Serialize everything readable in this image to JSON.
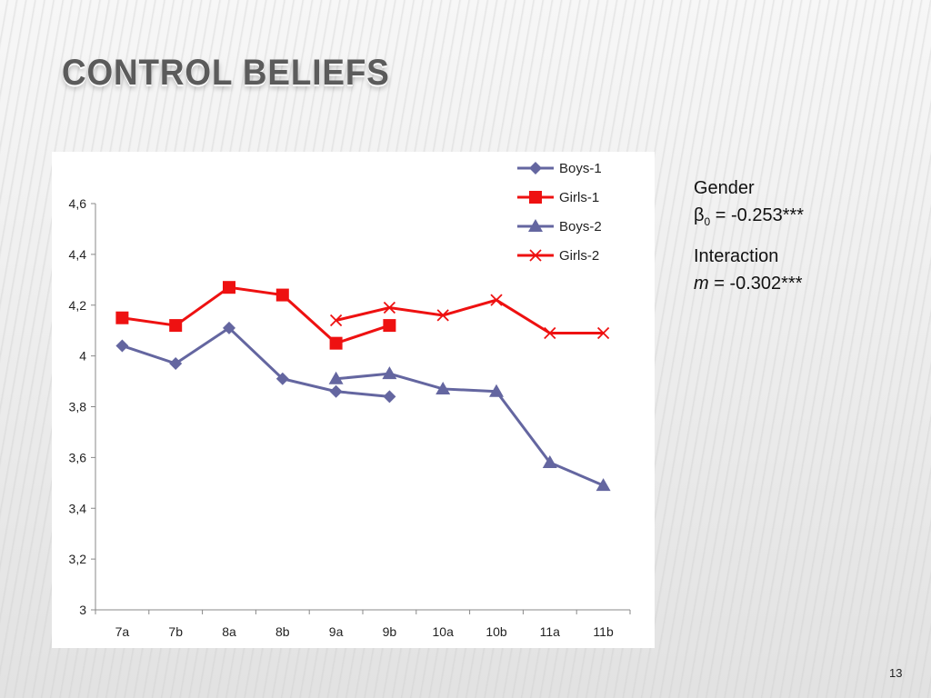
{
  "slide": {
    "title": "CONTROL BELIEFS",
    "page_number": "13"
  },
  "annotation": {
    "gender_label": "Gender",
    "beta_symbol": "β",
    "beta_subscript": "0",
    "beta_value": " = -0.253***",
    "interaction_label": "Interaction",
    "m_symbol": "m",
    "m_value": " = -0.302***"
  },
  "chart_data": {
    "type": "line",
    "categories": [
      "7a",
      "7b",
      "8a",
      "8b",
      "9a",
      "9b",
      "10a",
      "10b",
      "11a",
      "11b"
    ],
    "ylim": [
      3,
      4.6
    ],
    "yticks": [
      3,
      3.2,
      3.4,
      3.6,
      3.8,
      4,
      4.2,
      4.4,
      4.6
    ],
    "ytick_labels": [
      "3",
      "3,2",
      "3,4",
      "3,6",
      "3,8",
      "4",
      "4,2",
      "4,4",
      "4,6"
    ],
    "legend_position": "top-right",
    "series": [
      {
        "name": "Boys-1",
        "color": "#6466a0",
        "marker": "diamond",
        "values": [
          4.04,
          3.97,
          4.11,
          3.91,
          3.86,
          3.84,
          null,
          null,
          null,
          null
        ]
      },
      {
        "name": "Girls-1",
        "color": "#ee1111",
        "marker": "square",
        "values": [
          4.15,
          4.12,
          4.27,
          4.24,
          4.05,
          4.12,
          null,
          null,
          null,
          null
        ]
      },
      {
        "name": "Boys-2",
        "color": "#6466a0",
        "marker": "triangle",
        "values": [
          null,
          null,
          null,
          null,
          3.91,
          3.93,
          3.87,
          3.86,
          3.58,
          3.49
        ]
      },
      {
        "name": "Girls-2",
        "color": "#ee1111",
        "marker": "x",
        "values": [
          null,
          null,
          null,
          null,
          4.14,
          4.19,
          4.16,
          4.22,
          4.09,
          4.09
        ]
      }
    ]
  }
}
